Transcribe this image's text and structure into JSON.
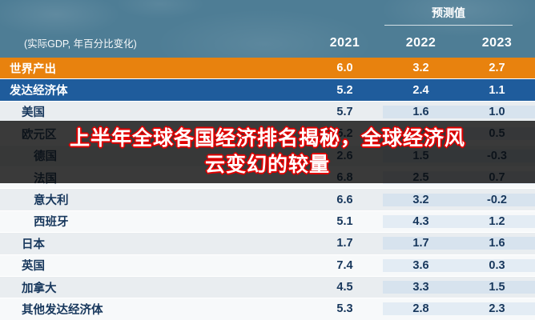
{
  "header": {
    "forecast_label": "预测值",
    "note": "(实际GDP, 年百分比变化)",
    "years": [
      "2021",
      "2022",
      "2023"
    ]
  },
  "overlay": {
    "title_line1": "上半年全球各国经济排名揭秘，全球经济风",
    "title_line2": "云变幻的较量"
  },
  "colors": {
    "header_background": "#4e7d95",
    "world_row": "#e8820e",
    "advanced_row": "#1f5c9c",
    "forecast_tint": "#d7e3ee",
    "text_navy": "#17375c",
    "banner_outline_red": "#e00000"
  },
  "chart_data": {
    "type": "table",
    "title_note": "(实际GDP, 年百分比变化)",
    "forecast_header": "预测值",
    "columns": [
      "2021",
      "2022",
      "2023"
    ],
    "forecast_columns": [
      "2022",
      "2023"
    ],
    "rows": [
      {
        "label": "世界产出",
        "values": [
          "6.0",
          "3.2",
          "2.7"
        ],
        "indent": 0,
        "style": "world"
      },
      {
        "label": "发达经济体",
        "values": [
          "5.2",
          "2.4",
          "1.1"
        ],
        "indent": 0,
        "style": "advanced"
      },
      {
        "label": "美国",
        "values": [
          "5.7",
          "1.6",
          "1.0"
        ],
        "indent": 1
      },
      {
        "label": "欧元区",
        "values": [
          "5.2",
          "3.1",
          "0.5"
        ],
        "indent": 1
      },
      {
        "label": "德国",
        "values": [
          "2.6",
          "1.5",
          "-0.3"
        ],
        "indent": 2
      },
      {
        "label": "法国",
        "values": [
          "6.8",
          "2.5",
          "0.7"
        ],
        "indent": 2
      },
      {
        "label": "意大利",
        "values": [
          "6.6",
          "3.2",
          "-0.2"
        ],
        "indent": 2
      },
      {
        "label": "西班牙",
        "values": [
          "5.1",
          "4.3",
          "1.2"
        ],
        "indent": 2
      },
      {
        "label": "日本",
        "values": [
          "1.7",
          "1.7",
          "1.6"
        ],
        "indent": 1
      },
      {
        "label": "英国",
        "values": [
          "7.4",
          "3.6",
          "0.3"
        ],
        "indent": 1
      },
      {
        "label": "加拿大",
        "values": [
          "4.5",
          "3.3",
          "1.5"
        ],
        "indent": 1
      },
      {
        "label": "其他发达经济体",
        "values": [
          "5.3",
          "2.8",
          "2.3"
        ],
        "indent": 1
      }
    ]
  }
}
